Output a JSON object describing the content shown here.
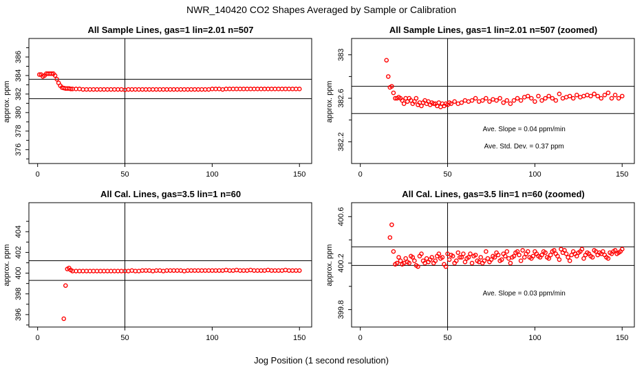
{
  "page": {
    "main_title": "NWR_140420  CO2 Shapes Averaged by Sample or Calibration",
    "x_axis_label": "Jog Position (1 second resolution)"
  },
  "chart_data": [
    {
      "type": "scatter",
      "title": "All Sample Lines, gas=1 lin=2.01 n=507",
      "ylabel": "approx. ppm",
      "xlim": [
        -5,
        157
      ],
      "ylim": [
        374.5,
        388
      ],
      "xticks": [
        0,
        50,
        100,
        150
      ],
      "yticks": [
        376,
        378,
        380,
        382,
        384,
        386
      ],
      "vline": 50,
      "hlines": [
        381.5,
        383.6
      ],
      "annotations": [],
      "series": [
        {
          "color": "#ff0000",
          "x": [
            1,
            2,
            3,
            4,
            5,
            6,
            7,
            8,
            9,
            10,
            11,
            12,
            13,
            14,
            15,
            16,
            17,
            18,
            19,
            20,
            22,
            24,
            26,
            28,
            30,
            32,
            34,
            36,
            38,
            40,
            42,
            44,
            46,
            48,
            50,
            52,
            54,
            56,
            58,
            60,
            62,
            64,
            66,
            68,
            70,
            72,
            74,
            76,
            78,
            80,
            82,
            84,
            86,
            88,
            90,
            92,
            94,
            96,
            98,
            100,
            102,
            104,
            106,
            108,
            110,
            112,
            114,
            116,
            118,
            120,
            122,
            124,
            126,
            128,
            130,
            132,
            134,
            136,
            138,
            140,
            142,
            144,
            146,
            148,
            150
          ],
          "y": [
            384.1,
            384.1,
            383.9,
            384.0,
            384.2,
            384.2,
            384.2,
            384.2,
            384.2,
            384.0,
            383.6,
            383.2,
            382.9,
            382.7,
            382.65,
            382.6,
            382.6,
            382.6,
            382.55,
            382.55,
            382.55,
            382.55,
            382.5,
            382.5,
            382.5,
            382.5,
            382.5,
            382.5,
            382.5,
            382.5,
            382.5,
            382.5,
            382.5,
            382.5,
            382.45,
            382.5,
            382.5,
            382.5,
            382.5,
            382.5,
            382.5,
            382.5,
            382.5,
            382.5,
            382.5,
            382.5,
            382.5,
            382.5,
            382.5,
            382.5,
            382.5,
            382.5,
            382.5,
            382.5,
            382.5,
            382.5,
            382.5,
            382.5,
            382.5,
            382.55,
            382.55,
            382.55,
            382.5,
            382.55,
            382.55,
            382.55,
            382.55,
            382.55,
            382.55,
            382.55,
            382.55,
            382.55,
            382.55,
            382.55,
            382.55,
            382.55,
            382.55,
            382.55,
            382.55,
            382.55,
            382.55,
            382.55,
            382.55,
            382.55,
            382.55
          ]
        }
      ]
    },
    {
      "type": "scatter",
      "title": "All Sample Lines, gas=1 lin=2.01 n=507 (zoomed)",
      "ylabel": "approx. ppm",
      "xlim": [
        -5,
        157
      ],
      "ylim": [
        382.0,
        383.15
      ],
      "xticks": [
        0,
        50,
        100,
        150
      ],
      "yticks": [
        382.2,
        382.6,
        383.0
      ],
      "vline": 50,
      "hlines": [
        382.46,
        382.71
      ],
      "annotations": [
        "Ave. Slope =  0.04  ppm/min",
        "Ave. Std. Dev. =  0.37  ppm"
      ],
      "series": [
        {
          "color": "#ff0000",
          "x": [
            15,
            16,
            17,
            18,
            19,
            20,
            21,
            22,
            23,
            24,
            25,
            26,
            27,
            28,
            29,
            30,
            31,
            32,
            33,
            34,
            35,
            36,
            37,
            38,
            39,
            40,
            41,
            42,
            43,
            44,
            45,
            46,
            47,
            48,
            49,
            50,
            51,
            52,
            54,
            56,
            58,
            60,
            62,
            64,
            66,
            68,
            70,
            72,
            74,
            76,
            78,
            80,
            82,
            84,
            86,
            88,
            90,
            92,
            94,
            96,
            98,
            100,
            102,
            104,
            106,
            108,
            110,
            112,
            114,
            116,
            118,
            120,
            122,
            124,
            126,
            128,
            130,
            132,
            134,
            136,
            138,
            140,
            142,
            144,
            146,
            148,
            150
          ],
          "y": [
            382.95,
            382.8,
            382.7,
            382.71,
            382.65,
            382.6,
            382.6,
            382.61,
            382.6,
            382.58,
            382.55,
            382.6,
            382.57,
            382.6,
            382.58,
            382.55,
            382.57,
            382.6,
            382.54,
            382.56,
            382.53,
            382.56,
            382.58,
            382.55,
            382.57,
            382.54,
            382.56,
            382.55,
            382.55,
            382.53,
            382.56,
            382.52,
            382.55,
            382.53,
            382.55,
            382.54,
            382.56,
            382.55,
            382.57,
            382.55,
            382.56,
            382.58,
            382.57,
            382.58,
            382.6,
            382.57,
            382.58,
            382.6,
            382.57,
            382.59,
            382.58,
            382.6,
            382.56,
            382.58,
            382.55,
            382.58,
            382.6,
            382.58,
            382.61,
            382.62,
            382.6,
            382.57,
            382.62,
            382.58,
            382.6,
            382.62,
            382.6,
            382.58,
            382.64,
            382.6,
            382.61,
            382.62,
            382.6,
            382.63,
            382.61,
            382.62,
            382.63,
            382.62,
            382.64,
            382.62,
            382.6,
            382.63,
            382.65,
            382.6,
            382.63,
            382.6,
            382.62
          ]
        }
      ]
    },
    {
      "type": "scatter",
      "title": "All Cal. Lines, gas=3.5 lin=1 n=60",
      "ylabel": "approx. ppm",
      "xlim": [
        -5,
        157
      ],
      "ylim": [
        394.8,
        406.8
      ],
      "xticks": [
        0,
        50,
        100,
        150
      ],
      "yticks": [
        396,
        398,
        400,
        402,
        404
      ],
      "vline": 50,
      "hlines": [
        399.3,
        401.2
      ],
      "annotations": [],
      "series": [
        {
          "color": "#ff0000",
          "x": [
            15,
            16,
            17,
            18,
            19,
            20,
            22,
            24,
            26,
            28,
            30,
            32,
            34,
            36,
            38,
            40,
            42,
            44,
            46,
            48,
            50,
            52,
            54,
            56,
            58,
            60,
            62,
            64,
            66,
            68,
            70,
            72,
            74,
            76,
            78,
            80,
            82,
            84,
            86,
            88,
            90,
            92,
            94,
            96,
            98,
            100,
            102,
            104,
            106,
            108,
            110,
            112,
            114,
            116,
            118,
            120,
            122,
            124,
            126,
            128,
            130,
            132,
            134,
            136,
            138,
            140,
            142,
            144,
            146,
            148,
            150
          ],
          "y": [
            395.6,
            398.8,
            400.4,
            400.5,
            400.3,
            400.2,
            400.2,
            400.2,
            400.2,
            400.2,
            400.2,
            400.2,
            400.2,
            400.2,
            400.2,
            400.2,
            400.2,
            400.2,
            400.2,
            400.2,
            400.2,
            400.2,
            400.25,
            400.2,
            400.2,
            400.25,
            400.25,
            400.25,
            400.2,
            400.25,
            400.25,
            400.2,
            400.25,
            400.25,
            400.25,
            400.25,
            400.25,
            400.2,
            400.25,
            400.25,
            400.25,
            400.25,
            400.25,
            400.25,
            400.25,
            400.25,
            400.25,
            400.25,
            400.25,
            400.3,
            400.25,
            400.25,
            400.3,
            400.25,
            400.25,
            400.25,
            400.3,
            400.25,
            400.25,
            400.25,
            400.25,
            400.3,
            400.25,
            400.25,
            400.25,
            400.25,
            400.3,
            400.25,
            400.25,
            400.25,
            400.25
          ]
        }
      ]
    },
    {
      "type": "scatter",
      "title": "All Cal. Lines, gas=3.5 lin=1 n=60 (zoomed)",
      "ylabel": "approx. ppm",
      "xlim": [
        -5,
        157
      ],
      "ylim": [
        399.65,
        400.72
      ],
      "xticks": [
        0,
        50,
        100,
        150
      ],
      "yticks": [
        399.8,
        400.2,
        400.6
      ],
      "vline": 50,
      "hlines": [
        400.18,
        400.34
      ],
      "annotations": [
        "Ave. Slope =  0.03  ppm/min"
      ],
      "series": [
        {
          "color": "#ff0000",
          "x": [
            17,
            18,
            19,
            20,
            21,
            22,
            23,
            24,
            25,
            26,
            27,
            28,
            29,
            30,
            31,
            32,
            33,
            34,
            35,
            36,
            37,
            38,
            39,
            40,
            41,
            42,
            43,
            44,
            45,
            46,
            47,
            48,
            49,
            50,
            51,
            52,
            53,
            54,
            55,
            56,
            57,
            58,
            59,
            60,
            61,
            62,
            63,
            64,
            65,
            66,
            67,
            68,
            69,
            70,
            71,
            72,
            73,
            74,
            75,
            76,
            77,
            78,
            79,
            80,
            81,
            82,
            83,
            84,
            85,
            86,
            87,
            88,
            89,
            90,
            91,
            92,
            93,
            94,
            95,
            96,
            97,
            98,
            99,
            100,
            101,
            102,
            103,
            104,
            105,
            106,
            107,
            108,
            109,
            110,
            111,
            112,
            113,
            114,
            115,
            116,
            117,
            118,
            119,
            120,
            121,
            122,
            123,
            124,
            125,
            126,
            127,
            128,
            129,
            130,
            131,
            132,
            133,
            134,
            135,
            136,
            137,
            138,
            139,
            140,
            141,
            142,
            143,
            144,
            145,
            146,
            147,
            148,
            149,
            150
          ],
          "y": [
            400.42,
            400.53,
            400.3,
            400.19,
            400.2,
            400.25,
            400.22,
            400.19,
            400.2,
            400.24,
            400.21,
            400.2,
            400.26,
            400.25,
            400.22,
            400.18,
            400.17,
            400.26,
            400.28,
            400.22,
            400.2,
            400.24,
            400.21,
            400.23,
            400.25,
            400.2,
            400.22,
            400.26,
            400.28,
            400.24,
            400.25,
            400.19,
            400.17,
            400.28,
            400.23,
            400.27,
            400.26,
            400.2,
            400.22,
            400.29,
            400.25,
            400.25,
            400.28,
            400.21,
            400.24,
            400.25,
            400.28,
            400.2,
            400.26,
            400.27,
            400.22,
            400.21,
            400.25,
            400.2,
            400.22,
            400.3,
            400.24,
            400.21,
            400.23,
            400.26,
            400.25,
            400.29,
            400.27,
            400.22,
            400.23,
            400.28,
            400.26,
            400.3,
            400.24,
            400.2,
            400.25,
            400.26,
            400.29,
            400.3,
            400.27,
            400.22,
            400.31,
            400.25,
            400.28,
            400.3,
            400.25,
            400.24,
            400.26,
            400.3,
            400.28,
            400.26,
            400.25,
            400.27,
            400.3,
            400.29,
            400.25,
            400.24,
            400.27,
            400.3,
            400.31,
            400.28,
            400.26,
            400.23,
            400.32,
            400.29,
            400.31,
            400.28,
            400.25,
            400.22,
            400.27,
            400.3,
            400.28,
            400.26,
            400.29,
            400.3,
            400.32,
            400.24,
            400.27,
            400.29,
            400.28,
            400.26,
            400.25,
            400.31,
            400.3,
            400.27,
            400.29,
            400.28,
            400.3,
            400.27,
            400.25,
            400.24,
            400.29,
            400.28,
            400.3,
            400.31,
            400.28,
            400.29,
            400.3,
            400.32
          ]
        }
      ]
    }
  ]
}
